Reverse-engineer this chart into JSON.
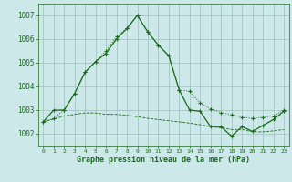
{
  "line1_x": [
    0,
    1,
    2,
    3,
    4,
    5,
    6,
    7,
    8,
    9,
    10,
    11,
    12,
    13,
    14,
    15,
    16,
    17,
    18,
    19,
    20,
    21,
    22,
    23
  ],
  "line1_y": [
    1002.5,
    1002.65,
    1003.0,
    1003.7,
    1004.6,
    1005.05,
    1005.5,
    1006.1,
    1006.45,
    1007.0,
    1006.3,
    1005.75,
    1005.3,
    1003.85,
    1003.8,
    1003.3,
    1003.05,
    1002.9,
    1002.8,
    1002.7,
    1002.65,
    1002.7,
    1002.75,
    1003.0
  ],
  "line2_x": [
    0,
    1,
    2,
    3,
    4,
    5,
    6,
    7,
    8,
    9,
    10,
    11,
    12,
    13,
    14,
    15,
    16,
    17,
    18,
    19,
    20,
    21,
    22,
    23
  ],
  "line2_y": [
    1002.5,
    1003.0,
    1003.0,
    1003.7,
    1004.6,
    1005.05,
    1005.4,
    1006.0,
    1006.45,
    1007.0,
    1006.3,
    1005.75,
    1005.3,
    1003.85,
    1003.0,
    1002.95,
    1002.3,
    1002.3,
    1001.9,
    1002.3,
    1002.1,
    1002.35,
    1002.6,
    1002.95
  ],
  "line3_x": [
    0,
    1,
    2,
    3,
    4,
    5,
    6,
    7,
    8,
    9,
    10,
    11,
    12,
    13,
    14,
    15,
    16,
    17,
    18,
    19,
    20,
    21,
    22,
    23
  ],
  "line3_y": [
    1002.5,
    1002.62,
    1002.75,
    1002.82,
    1002.88,
    1002.88,
    1002.82,
    1002.82,
    1002.78,
    1002.72,
    1002.65,
    1002.6,
    1002.55,
    1002.5,
    1002.45,
    1002.38,
    1002.3,
    1002.25,
    1002.18,
    1002.18,
    1002.08,
    1002.08,
    1002.12,
    1002.18
  ],
  "line_color": "#1a6b1a",
  "bg_color": "#cce8e8",
  "grid_color": "#9bbfbf",
  "xlabel": "Graphe pression niveau de la mer (hPa)",
  "ylim": [
    1001.5,
    1007.5
  ],
  "xlim": [
    -0.5,
    23.5
  ],
  "yticks": [
    1002,
    1003,
    1004,
    1005,
    1006,
    1007
  ],
  "xticks": [
    0,
    1,
    2,
    3,
    4,
    5,
    6,
    7,
    8,
    9,
    10,
    11,
    12,
    13,
    14,
    15,
    16,
    17,
    18,
    19,
    20,
    21,
    22,
    23
  ]
}
